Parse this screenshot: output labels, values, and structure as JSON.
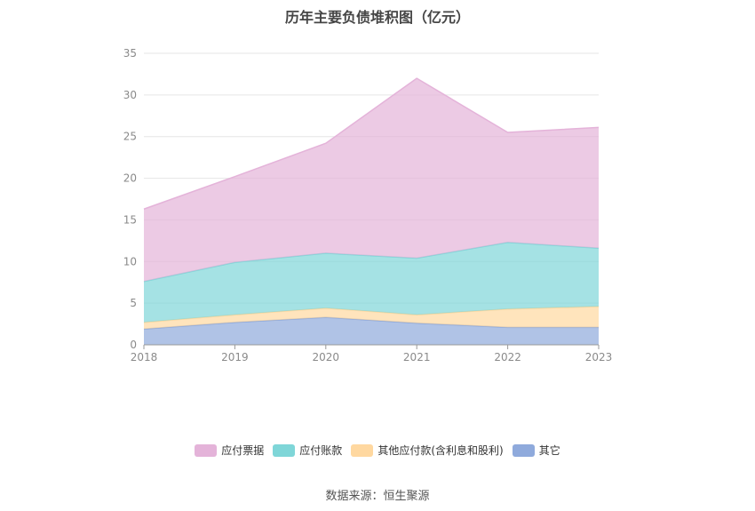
{
  "chart_data": {
    "type": "area",
    "stacked": true,
    "title": "历年主要负债堆积图（亿元）",
    "x": [
      "2018",
      "2019",
      "2020",
      "2021",
      "2022",
      "2023"
    ],
    "yticks": [
      "0",
      "5",
      "10",
      "15",
      "20",
      "25",
      "30",
      "35"
    ],
    "ylim": [
      0,
      35
    ],
    "grid": true,
    "legend_position": "bottom",
    "series": [
      {
        "name": "其它",
        "color": "#8faadc",
        "values": [
          1.9,
          2.7,
          3.3,
          2.6,
          2.1,
          2.1
        ]
      },
      {
        "name": "其他应付款(含利息和股利)",
        "color": "#ffd8a0",
        "values": [
          0.8,
          0.9,
          1.1,
          1.0,
          2.2,
          2.5
        ]
      },
      {
        "name": "应付账款",
        "color": "#7fd6d8",
        "values": [
          4.9,
          6.3,
          6.6,
          6.8,
          8.0,
          7.0
        ]
      },
      {
        "name": "应付票据",
        "color": "#e4b3d9",
        "values": [
          8.7,
          10.3,
          13.2,
          21.6,
          13.2,
          14.5
        ]
      }
    ],
    "legend_order": [
      "应付票据",
      "应付账款",
      "其他应付款(含利息和股利)",
      "其它"
    ]
  },
  "footer": {
    "source": "数据来源：恒生聚源"
  }
}
